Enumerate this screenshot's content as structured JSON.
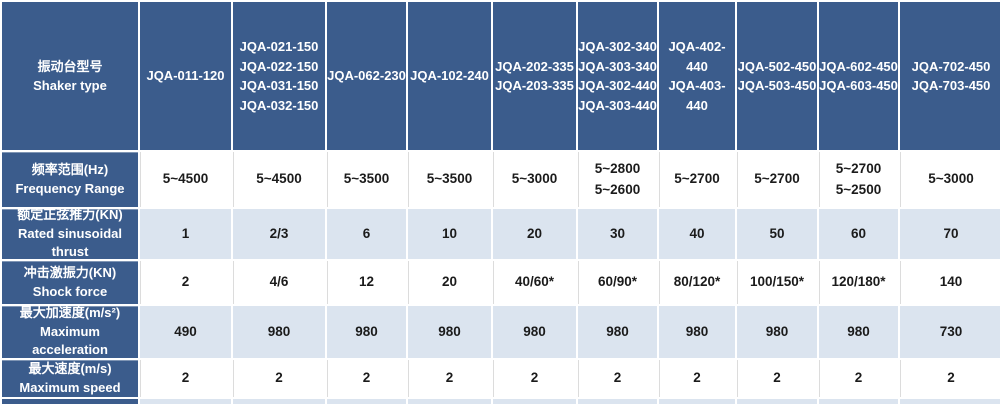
{
  "chart_data": {
    "type": "table",
    "corner_label": "振动台型号\nShaker type",
    "column_headers": [
      "JQA-011-120",
      "JQA-021-150\nJQA-022-150\nJQA-031-150\nJQA-032-150",
      "JQA-062-230",
      "JQA-102-240",
      "JQA-202-335\nJQA-203-335",
      "JQA-302-340\nJQA-303-340\nJQA-302-440\nJQA-303-440",
      "JQA-402-440\nJQA-403-440",
      "JQA-502-450\nJQA-503-450",
      "JQA-602-450\nJQA-603-450",
      "JQA-702-450\nJQA-703-450"
    ],
    "row_headers": [
      "频率范围(Hz)\nFrequency Range",
      "额定正弦推力(KN)\nRated sinusoidal thrust",
      "冲击激振力(KN)\nShock force",
      "最大加速度(m/s²)\nMaximum acceleration",
      "最大速度(m/s)\nMaximum speed"
    ],
    "rows": [
      [
        "5~4500",
        "5~4500",
        "5~3500",
        "5~3500",
        "5~3000",
        "5~2800\n5~2600",
        "5~2700",
        "5~2700",
        "5~2700\n5~2500",
        "5~3000"
      ],
      [
        "1",
        "2/3",
        "6",
        "10",
        "20",
        "30",
        "40",
        "50",
        "60",
        "70"
      ],
      [
        "2",
        "4/6",
        "12",
        "20",
        "40/60*",
        "60/90*",
        "80/120*",
        "100/150*",
        "120/180*",
        "140"
      ],
      [
        "490",
        "980",
        "980",
        "980",
        "980",
        "980",
        "980",
        "980",
        "980",
        "730"
      ],
      [
        "2",
        "2",
        "2",
        "2",
        "2",
        "2",
        "2",
        "2",
        "2",
        "2"
      ]
    ],
    "colors": {
      "header_bg": "#3B5C8C",
      "alt_row_bg": "#DBE4EF",
      "white_row_bg": "#FFFFFF",
      "header_text": "#FFFFFF",
      "value_text": "#1B1B1B"
    }
  }
}
